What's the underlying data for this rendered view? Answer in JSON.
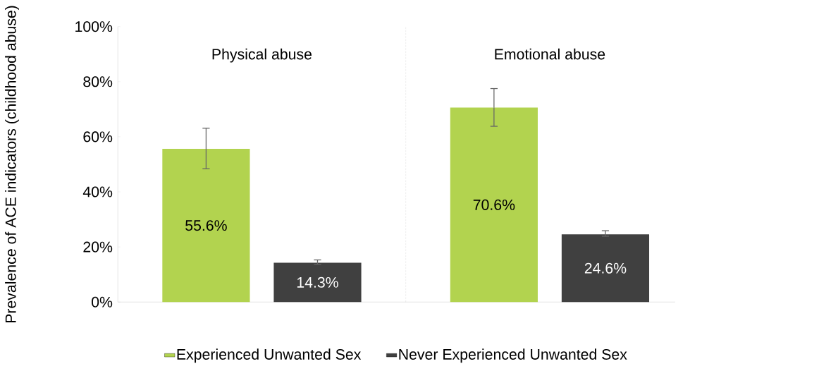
{
  "chart_data": {
    "type": "bar",
    "ylabel": "Prevalence of ACE indicators (childhood abuse)",
    "categories": [
      "Physical abuse",
      "Emotional abuse"
    ],
    "series": [
      {
        "name": "Experienced Unwanted Sex",
        "color": "#b2d34f",
        "values": [
          55.6,
          70.6
        ],
        "errors": [
          [
            48.4,
            63.1
          ],
          [
            63.8,
            77.5
          ]
        ],
        "value_labels": [
          "55.6%",
          "70.6%"
        ]
      },
      {
        "name": "Never Experienced Unwanted Sex",
        "color": "#404040",
        "values": [
          14.3,
          24.6
        ],
        "errors": [
          [
            13.7,
            15.3
          ],
          [
            23.9,
            25.9
          ]
        ],
        "value_labels": [
          "14.3%",
          "24.6%"
        ]
      }
    ],
    "ylim": [
      0,
      100
    ],
    "yticks": [
      {
        "value": 0,
        "label": "0%"
      },
      {
        "value": 20,
        "label": "20%"
      },
      {
        "value": 40,
        "label": "40%"
      },
      {
        "value": 60,
        "label": "60%"
      },
      {
        "value": 80,
        "label": "80%"
      },
      {
        "value": 100,
        "label": "100%"
      }
    ],
    "legend": "bottom"
  }
}
